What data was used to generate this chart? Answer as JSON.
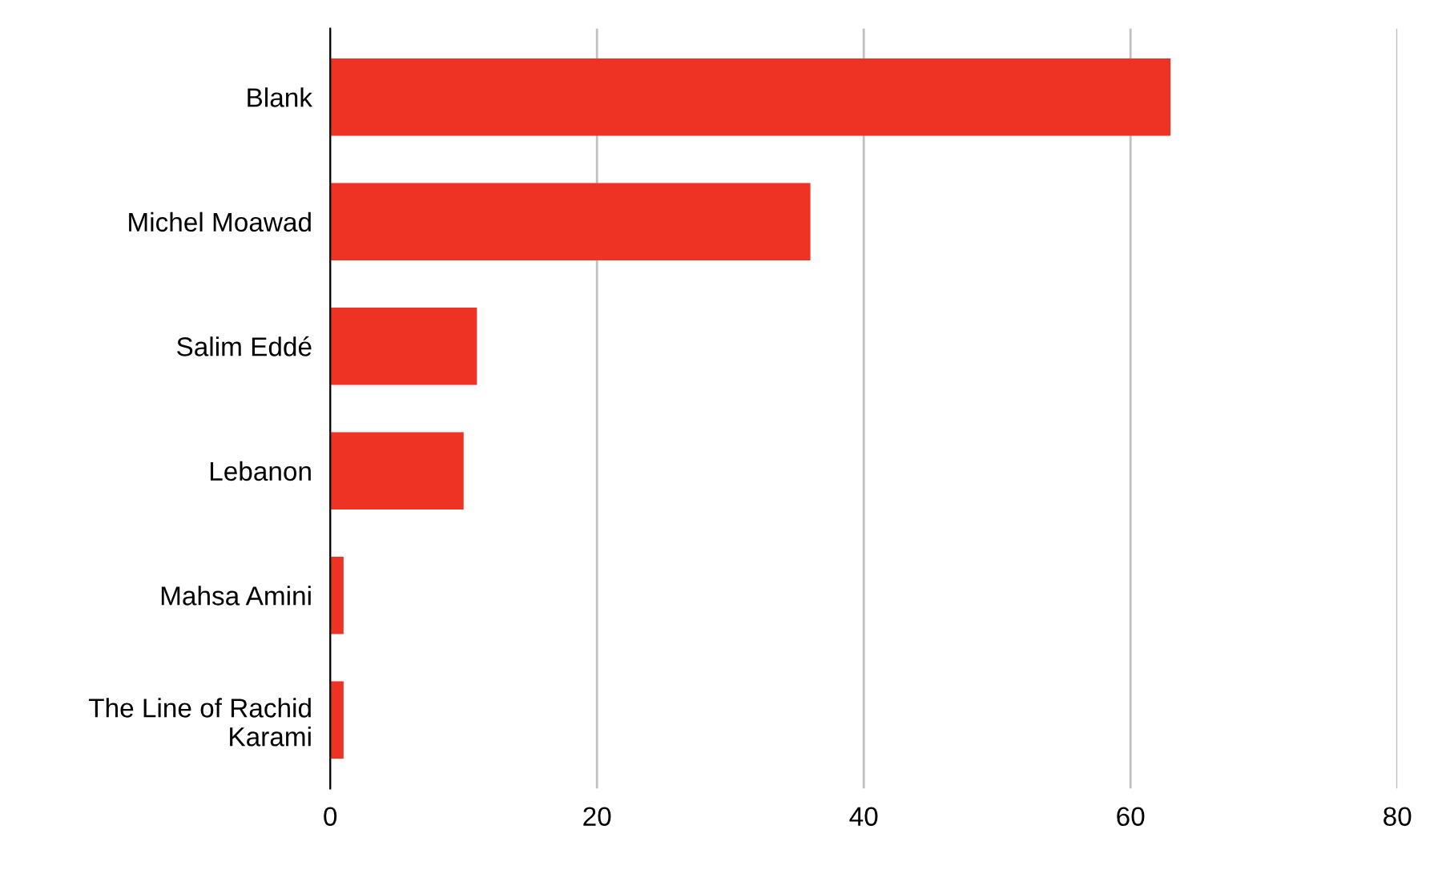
{
  "chart_data": {
    "type": "bar",
    "orientation": "horizontal",
    "categories": [
      "Blank",
      "Michel Moawad",
      "Salim Eddé",
      "Lebanon",
      "Mahsa Amini",
      "The Line of Rachid Karami"
    ],
    "values": [
      63,
      36,
      11,
      10,
      1,
      1
    ],
    "color": "#ee3224",
    "xlim": [
      0,
      80
    ],
    "xticks": [
      0,
      20,
      40,
      60,
      80
    ],
    "grid": "x",
    "legend": false
  }
}
